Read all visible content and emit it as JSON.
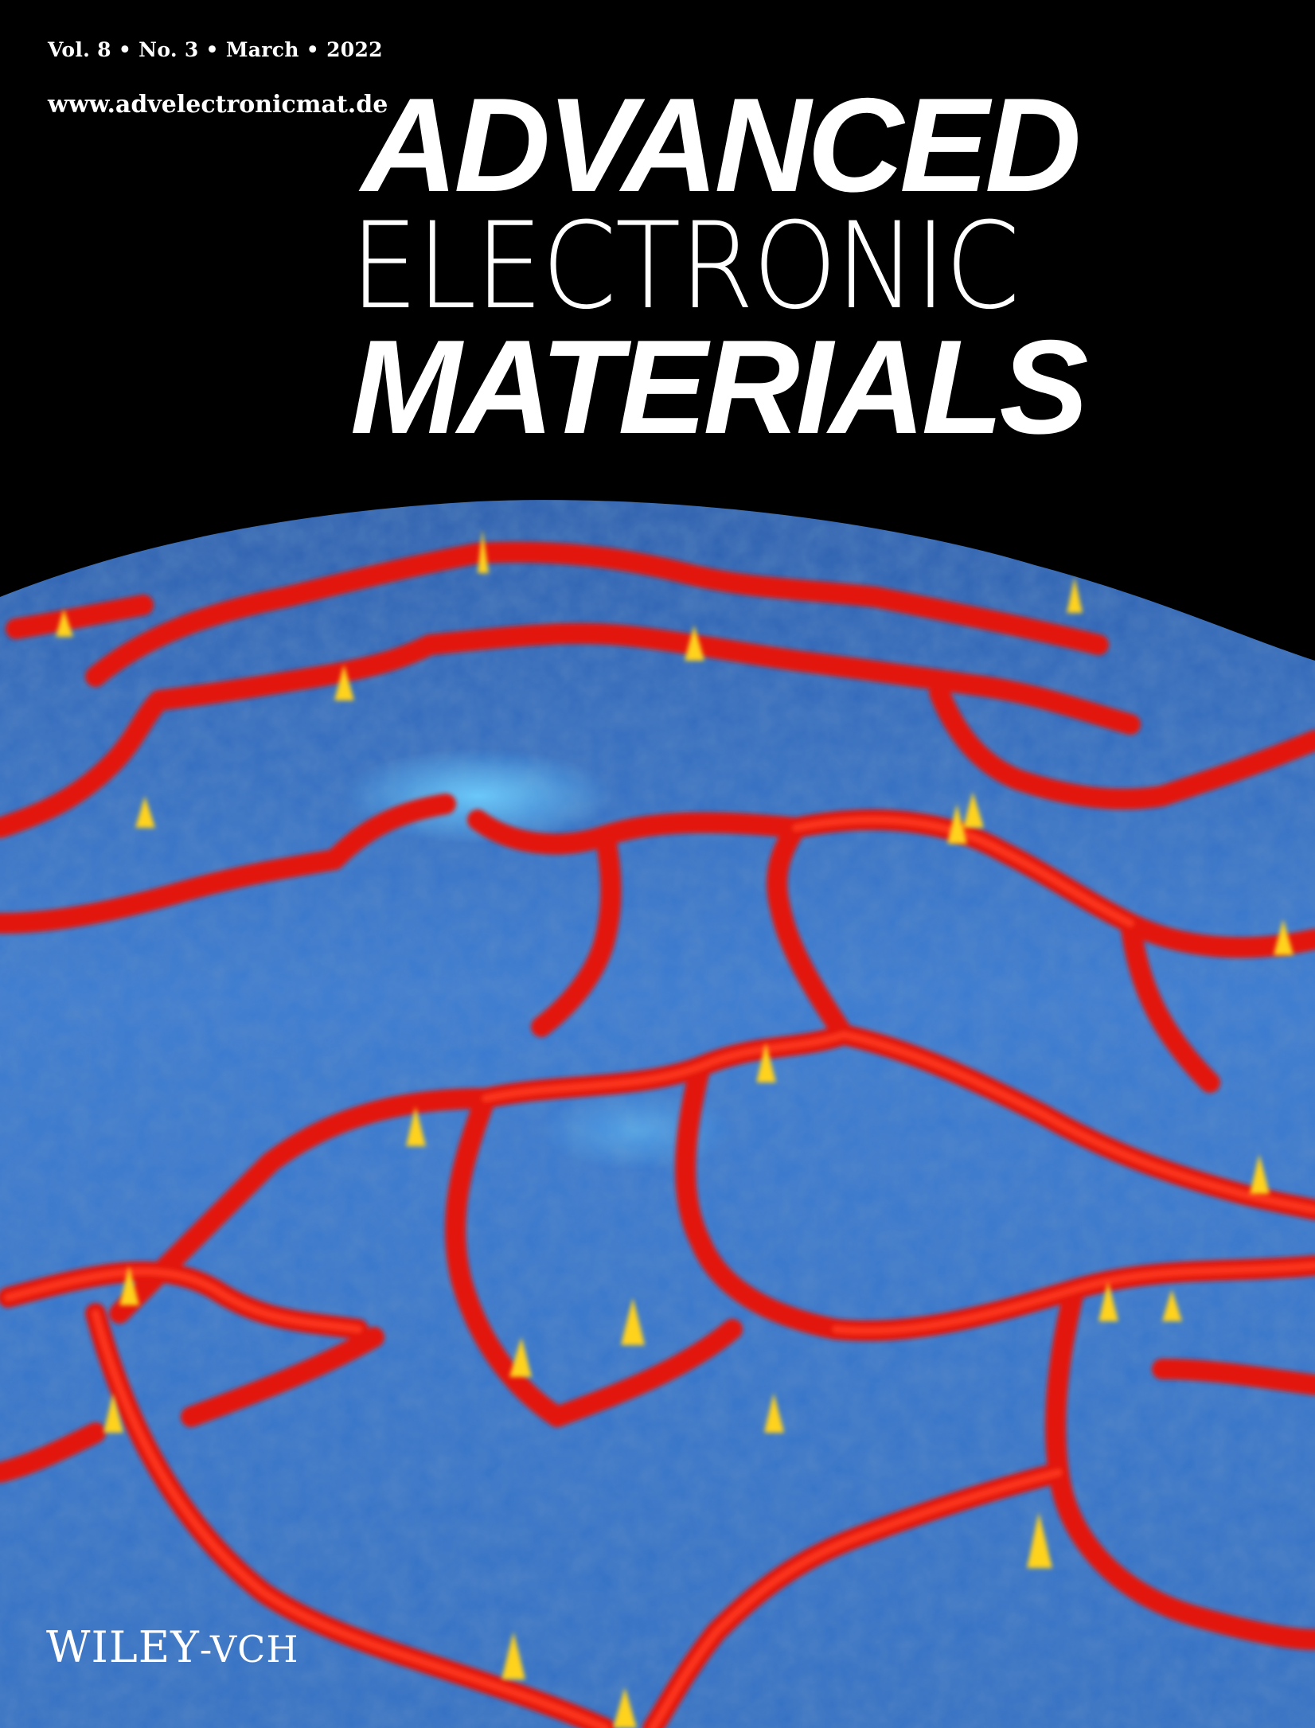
{
  "issue_line": "Vol. 8 • No. 3 • March • 2022",
  "website": "www.advelectronicmat.de",
  "masthead": {
    "line1": "ADVANCED",
    "line2": "ELECTRONIC",
    "line3": "MATERIALS"
  },
  "publisher": {
    "name": "WILEY",
    "suffix": "-VCH"
  },
  "artwork": {
    "icon": "3d-surface-topography-image",
    "colors": {
      "background": "#000000",
      "surface": "#3a78d0",
      "surface_light": "#5aa7ff",
      "ridge": "#e5150e",
      "peak": "#ffd21c"
    }
  }
}
